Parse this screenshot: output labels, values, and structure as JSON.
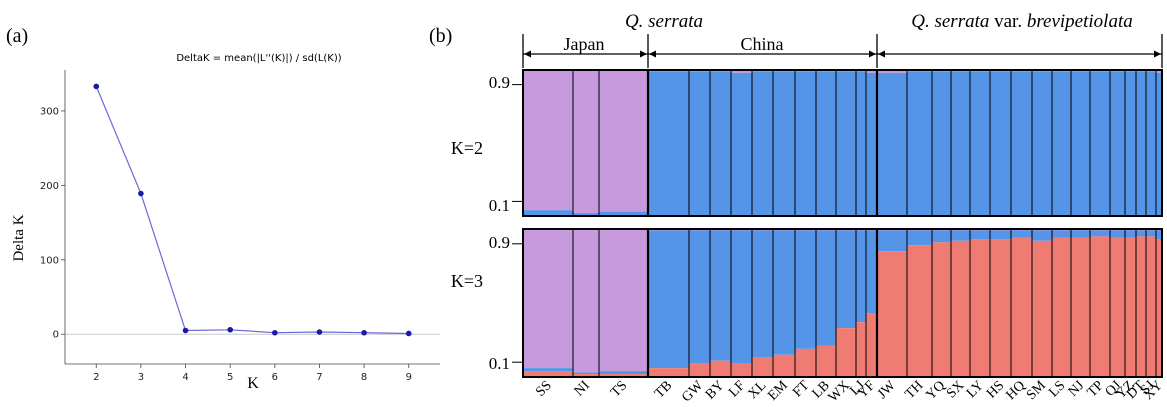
{
  "panel_labels": {
    "a": "(a)",
    "b": "(b)"
  },
  "chart_data": [
    {
      "type": "line",
      "title": "DeltaK = mean(|L''(K)|) / sd(L(K))",
      "xlabel": "K",
      "ylabel": "Delta K",
      "x": [
        2,
        3,
        4,
        5,
        6,
        7,
        8,
        9
      ],
      "series": [
        {
          "values": [
            333,
            189,
            5,
            6,
            2,
            3,
            2,
            1
          ]
        }
      ],
      "xticks": [
        "2",
        "3",
        "4",
        "5",
        "6",
        "7",
        "8",
        "9"
      ],
      "yticks": [
        "0",
        "100",
        "200",
        "300"
      ],
      "xlim": [
        1.3,
        9.7
      ],
      "ylim": [
        -40,
        355
      ],
      "grid": false,
      "colors": {
        "line": "#6a6ad8",
        "point": "#1a1aa8",
        "zero_line": "#c8c8c8"
      }
    },
    {
      "type": "bar",
      "subtype": "stacked-admixture",
      "species_labels": {
        "left": "Q. serrata",
        "right_prefix": "Q. serrata",
        "right_mid": " var. ",
        "right_suffix": "brevipetiolata"
      },
      "region_labels": [
        "Japan",
        "China"
      ],
      "rows": [
        {
          "label": "K=2",
          "yticks": [
            "0.9",
            "0.1"
          ]
        },
        {
          "label": "K=3",
          "yticks": [
            "0.9",
            "0.1"
          ]
        }
      ],
      "populations": [
        "SS",
        "NI",
        "TS",
        "TB",
        "GW",
        "BY",
        "LF",
        "XL",
        "EM",
        "FT",
        "LB",
        "WX",
        "LJ",
        "YF",
        "JW",
        "TH",
        "YQ",
        "SX",
        "LY",
        "HS",
        "HQ",
        "SM",
        "LS",
        "NJ",
        "TP",
        "QJ",
        "YZ",
        "DT",
        "SJ",
        "XY"
      ],
      "groups": [
        {
          "region": "Japan",
          "species": "Q. serrata",
          "populations": [
            "SS",
            "NI",
            "TS"
          ]
        },
        {
          "region": "China",
          "species": "Q. serrata",
          "populations": [
            "TB",
            "GW",
            "BY",
            "LF",
            "XL",
            "EM",
            "FT",
            "LB",
            "WX",
            "LJ",
            "YF"
          ]
        },
        {
          "region": "China",
          "species": "Q. serrata var. brevipetiolata",
          "populations": [
            "JW",
            "TH",
            "YQ",
            "SX",
            "LY",
            "HS",
            "HQ",
            "SM",
            "LS",
            "NJ",
            "TP",
            "QJ",
            "YZ",
            "DT",
            "SJ",
            "XY"
          ]
        }
      ],
      "clusters": [
        {
          "id": "cluster1",
          "color": "#c69add"
        },
        {
          "id": "cluster2",
          "color": "#5595e8"
        },
        {
          "id": "cluster3",
          "color": "#f07b72"
        }
      ],
      "membership_k2": {
        "cluster1": [
          0.96,
          0.98,
          0.97,
          0.01,
          0.01,
          0.01,
          0.02,
          0.01,
          0.01,
          0.01,
          0.01,
          0.01,
          0.01,
          0.02,
          0.02,
          0.01,
          0.01,
          0.01,
          0.01,
          0.01,
          0.01,
          0.01,
          0.01,
          0.01,
          0.01,
          0.01,
          0.01,
          0.01,
          0.01,
          0.02
        ],
        "cluster2": [
          0.04,
          0.02,
          0.03,
          0.99,
          0.99,
          0.99,
          0.98,
          0.99,
          0.99,
          0.99,
          0.99,
          0.99,
          0.99,
          0.98,
          0.98,
          0.99,
          0.99,
          0.99,
          0.99,
          0.99,
          0.99,
          0.99,
          0.99,
          0.99,
          0.99,
          0.99,
          0.99,
          0.99,
          0.99,
          0.98
        ]
      },
      "membership_k3": {
        "cluster1": [
          0.94,
          0.97,
          0.96,
          0.01,
          0.01,
          0.01,
          0.01,
          0.01,
          0.01,
          0.01,
          0.01,
          0.01,
          0.01,
          0.01,
          0.01,
          0.01,
          0.01,
          0.01,
          0.01,
          0.01,
          0.01,
          0.01,
          0.01,
          0.01,
          0.01,
          0.01,
          0.01,
          0.01,
          0.01,
          0.01
        ],
        "cluster2": [
          0.02,
          0.01,
          0.02,
          0.93,
          0.9,
          0.88,
          0.9,
          0.86,
          0.84,
          0.8,
          0.78,
          0.66,
          0.62,
          0.56,
          0.14,
          0.1,
          0.08,
          0.07,
          0.06,
          0.06,
          0.05,
          0.07,
          0.05,
          0.05,
          0.04,
          0.05,
          0.05,
          0.04,
          0.04,
          0.06
        ],
        "cluster3": [
          0.04,
          0.02,
          0.02,
          0.06,
          0.09,
          0.11,
          0.09,
          0.13,
          0.15,
          0.19,
          0.21,
          0.33,
          0.37,
          0.43,
          0.85,
          0.89,
          0.91,
          0.92,
          0.93,
          0.93,
          0.94,
          0.92,
          0.94,
          0.94,
          0.95,
          0.94,
          0.94,
          0.95,
          0.95,
          0.93
        ]
      }
    }
  ]
}
